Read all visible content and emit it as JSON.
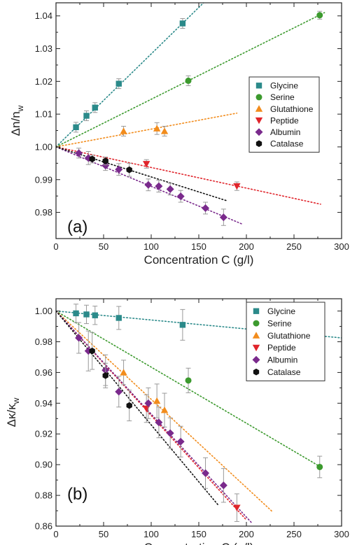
{
  "chart_data": [
    {
      "type": "scatter",
      "panel_label": "(a)",
      "xlabel": "Concentration C (g/l)",
      "ylabel": "Δn/n",
      "ylabel_sub": "w",
      "xlim": [
        0,
        300
      ],
      "ylim": [
        0.972,
        1.044
      ],
      "xticks": [
        0,
        50,
        100,
        150,
        200,
        250,
        300
      ],
      "yticks": [
        0.98,
        0.99,
        1.0,
        1.01,
        1.02,
        1.03,
        1.04
      ],
      "ytick_labels": [
        "0.98",
        "0.99",
        "1.00",
        "1.01",
        "1.02",
        "1.03",
        "1.04"
      ],
      "legend_position": "right",
      "series": [
        {
          "name": "Glycine",
          "color": "#2b8a8a",
          "marker": "square",
          "x": [
            21,
            32,
            41,
            66,
            133
          ],
          "y": [
            1.006,
            1.0095,
            1.012,
            1.0193,
            1.0377
          ],
          "err": [
            0.0015,
            0.0015,
            0.0015,
            0.0015,
            0.0015
          ],
          "fit": {
            "x": [
              0,
              155
            ],
            "y": [
              1.0,
              1.044
            ]
          }
        },
        {
          "name": "Serine",
          "color": "#3c9a2e",
          "marker": "circle",
          "x": [
            139,
            277
          ],
          "y": [
            1.0202,
            1.0402
          ],
          "err": [
            0.0015,
            0.0012
          ],
          "fit": {
            "x": [
              0,
              282
            ],
            "y": [
              1.0,
              1.041
            ]
          }
        },
        {
          "name": "Glutathione",
          "color": "#f28c1c",
          "marker": "triangle-up",
          "x": [
            71,
            106,
            114
          ],
          "y": [
            1.0048,
            1.0056,
            1.0048
          ],
          "err": [
            0.0015,
            0.0018,
            0.0015
          ],
          "fit": {
            "x": [
              0,
              190
            ],
            "y": [
              1.0,
              1.0103
            ]
          }
        },
        {
          "name": "Peptide",
          "color": "#e0242b",
          "marker": "triangle-down",
          "x": [
            95,
            190
          ],
          "y": [
            0.9948,
            0.988
          ],
          "err": [
            0.0013,
            0.0013
          ],
          "fit": {
            "x": [
              0,
              278
            ],
            "y": [
              1.0,
              0.9825
            ]
          }
        },
        {
          "name": "Albumin",
          "color": "#7a2a8c",
          "marker": "diamond",
          "x": [
            24,
            34,
            52,
            66,
            97,
            108,
            120,
            131,
            157,
            176
          ],
          "y": [
            0.9981,
            0.9966,
            0.9943,
            0.9931,
            0.9884,
            0.988,
            0.9871,
            0.9849,
            0.9813,
            0.9785
          ],
          "err": [
            0.0015,
            0.002,
            0.0015,
            0.0018,
            0.0018,
            0.0018,
            0.0018,
            0.0018,
            0.0018,
            0.0025
          ],
          "fit": {
            "x": [
              0,
              195
            ],
            "y": [
              1.0,
              0.9765
            ]
          }
        },
        {
          "name": "Catalase",
          "color": "#111111",
          "marker": "hexagon",
          "x": [
            38,
            52,
            77
          ],
          "y": [
            0.9963,
            0.9957,
            0.993
          ],
          "err": [
            0.0012,
            0.0012,
            0.002
          ],
          "fit": {
            "x": [
              0,
              180
            ],
            "y": [
              1.0,
              0.9835
            ]
          }
        }
      ]
    },
    {
      "type": "scatter",
      "panel_label": "(b)",
      "xlabel": "Concentration C (g/l)",
      "ylabel": "Δκ/κ",
      "ylabel_sub": "w",
      "xlim": [
        0,
        300
      ],
      "ylim": [
        0.86,
        1.008
      ],
      "xticks": [
        0,
        50,
        100,
        150,
        200,
        250,
        300
      ],
      "yticks": [
        0.86,
        0.88,
        0.9,
        0.92,
        0.94,
        0.96,
        0.98,
        1.0
      ],
      "ytick_labels": [
        "0.86",
        "0.88",
        "0.90",
        "0.92",
        "0.94",
        "0.96",
        "0.98",
        "1.00"
      ],
      "legend_position": "top-right",
      "series": [
        {
          "name": "Glycine",
          "color": "#2b8a8a",
          "marker": "square",
          "x": [
            21,
            32,
            41,
            66,
            133
          ],
          "y": [
            0.9985,
            0.9978,
            0.9972,
            0.9955,
            0.991
          ],
          "err": [
            0.006,
            0.006,
            0.006,
            0.0075,
            0.01
          ],
          "fit": {
            "x": [
              0,
              300
            ],
            "y": [
              1.0,
              0.9825
            ]
          }
        },
        {
          "name": "Serine",
          "color": "#3c9a2e",
          "marker": "circle",
          "x": [
            139,
            277
          ],
          "y": [
            0.9548,
            0.8985
          ],
          "err": [
            0.008,
            0.007
          ],
          "fit": {
            "x": [
              0,
              278
            ],
            "y": [
              1.0,
              0.8985
            ]
          }
        },
        {
          "name": "Glutathione",
          "color": "#f28c1c",
          "marker": "triangle-up",
          "x": [
            71,
            106,
            114
          ],
          "y": [
            0.96,
            0.9415,
            0.9355
          ],
          "err": [
            0.008,
            0.011,
            0.011
          ],
          "fit": {
            "x": [
              0,
              228
            ],
            "y": [
              1.0,
              0.869
            ]
          }
        },
        {
          "name": "Peptide",
          "color": "#e0242b",
          "marker": "triangle-down",
          "x": [
            95,
            190
          ],
          "y": [
            0.9365,
            0.872
          ],
          "err": [
            0.009,
            0.009
          ],
          "fit": {
            "x": [
              0,
              200
            ],
            "y": [
              1.0,
              0.864
            ]
          }
        },
        {
          "name": "Albumin",
          "color": "#7a2a8c",
          "marker": "diamond",
          "x": [
            24,
            34,
            52,
            66,
            97,
            108,
            120,
            131,
            157,
            176
          ],
          "y": [
            0.9825,
            0.974,
            0.9615,
            0.9475,
            0.94,
            0.9275,
            0.9205,
            0.915,
            0.8945,
            0.8865
          ],
          "err": [
            0.01,
            0.013,
            0.01,
            0.01,
            0.01,
            0.01,
            0.01,
            0.01,
            0.01,
            0.011
          ],
          "fit": {
            "x": [
              0,
              205
            ],
            "y": [
              1.0,
              0.8625
            ]
          }
        },
        {
          "name": "Catalase",
          "color": "#111111",
          "marker": "hexagon",
          "x": [
            38,
            52,
            77
          ],
          "y": [
            0.974,
            0.958,
            0.9385
          ],
          "err": [
            0.012,
            0.008,
            0.01
          ],
          "fit": {
            "x": [
              0,
              170
            ],
            "y": [
              1.0,
              0.874
            ]
          }
        }
      ]
    }
  ]
}
